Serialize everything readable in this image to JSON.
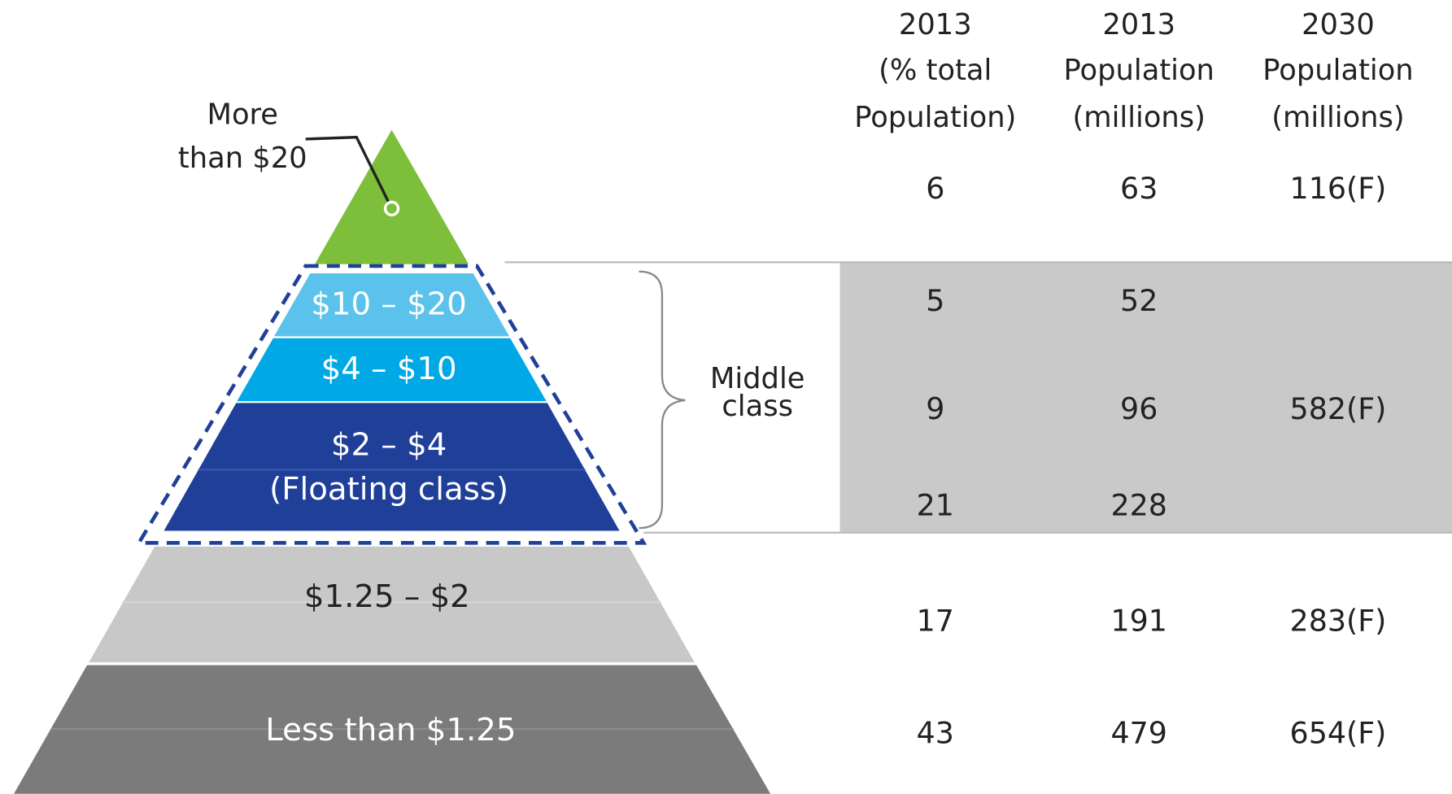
{
  "pyramid": {
    "tiers": [
      {
        "label": [
          "More",
          "than $20"
        ]
      },
      {
        "label": [
          "$10 – $20"
        ]
      },
      {
        "label": [
          "$4 – $10"
        ]
      },
      {
        "label": [
          "$2 – $4",
          "(Floating class)"
        ]
      },
      {
        "label": [
          "$1.25 – $2"
        ]
      },
      {
        "label": [
          "Less than $1.25"
        ]
      }
    ],
    "bracket_label": [
      "Middle",
      "class"
    ]
  },
  "table": {
    "columns": [
      [
        "2013",
        "(% total",
        "Population)"
      ],
      [
        "2013",
        "Population",
        "(millions)"
      ],
      [
        "2030",
        "Population",
        "(millions)"
      ]
    ],
    "rows": [
      [
        6,
        63,
        "116(F)"
      ],
      [
        5,
        52
      ],
      [
        9,
        96
      ],
      [
        21,
        228
      ],
      [
        17,
        191,
        "283(F)"
      ],
      [
        43,
        479,
        "654(F)"
      ]
    ],
    "merged_cell": "582(F)"
  }
}
